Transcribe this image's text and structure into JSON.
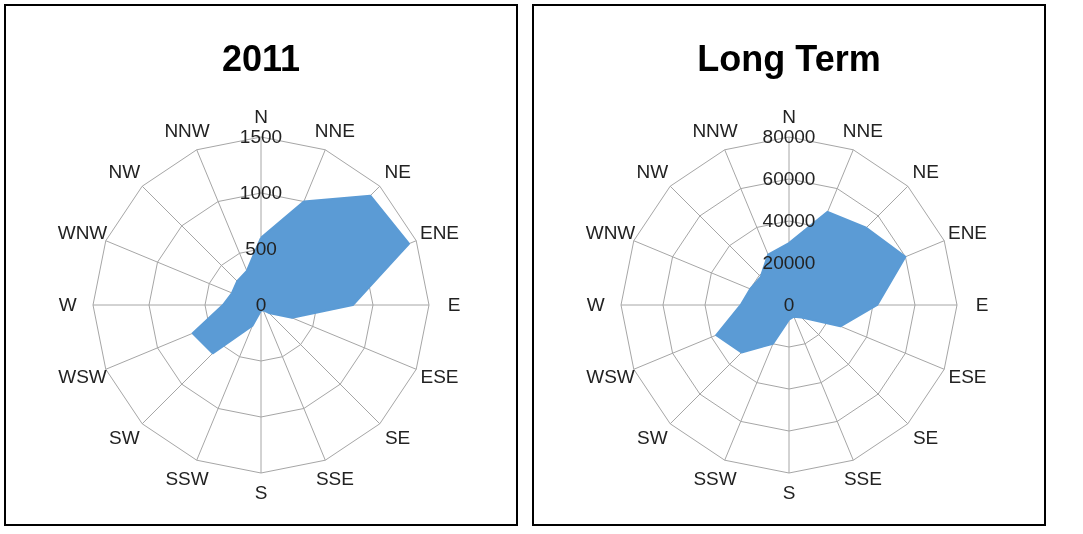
{
  "chart_data": [
    {
      "type": "radar",
      "title": "2011",
      "categories": [
        "N",
        "NNE",
        "NE",
        "ENE",
        "E",
        "ESE",
        "SE",
        "SSE",
        "S",
        "SSW",
        "SW",
        "WSW",
        "W",
        "WNW",
        "NW",
        "NNW"
      ],
      "series": [
        {
          "color": "#5b9bd5",
          "values": [
            600,
            1000,
            1380,
            1430,
            820,
            300,
            100,
            50,
            50,
            200,
            610,
            660,
            340,
            280,
            300,
            330
          ]
        }
      ],
      "ylim": [
        0,
        1500
      ],
      "yticks": [
        0,
        500,
        1000,
        1500
      ],
      "grid": true
    },
    {
      "type": "radar",
      "title": "Long Term",
      "categories": [
        "N",
        "NNE",
        "NE",
        "ENE",
        "E",
        "ESE",
        "SE",
        "SSE",
        "S",
        "SSW",
        "SW",
        "WSW",
        "W",
        "WNW",
        "NW",
        "NNW"
      ],
      "series": [
        {
          "color": "#5b9bd5",
          "values": [
            29500,
            48000,
            52000,
            60000,
            42000,
            26500,
            8500,
            6000,
            7000,
            20000,
            32000,
            37500,
            23000,
            20000,
            19000,
            26000
          ]
        }
      ],
      "ylim": [
        0,
        80000
      ],
      "yticks": [
        0,
        20000,
        40000,
        60000,
        80000
      ],
      "grid": true
    }
  ]
}
